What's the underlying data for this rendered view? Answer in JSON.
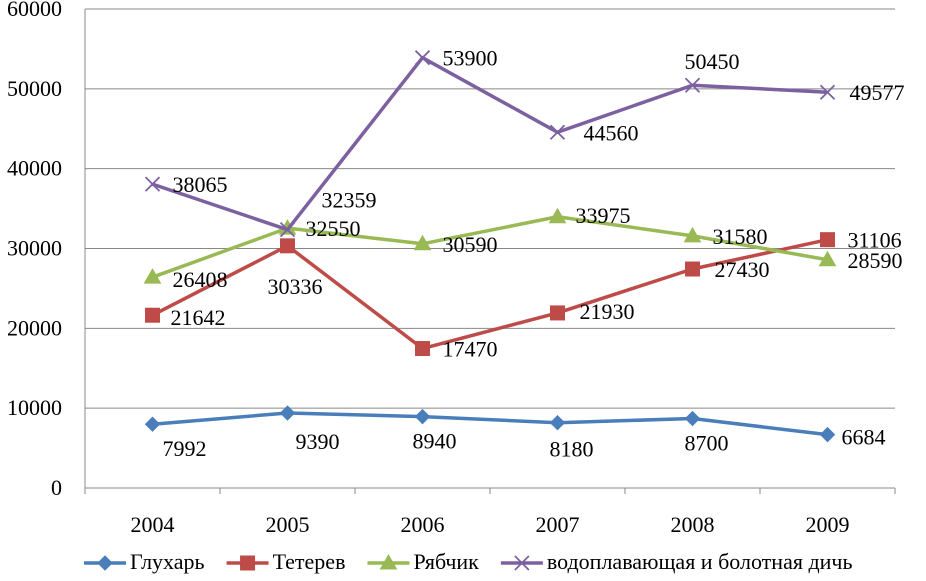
{
  "chart_data": {
    "type": "line",
    "categories": [
      "2004",
      "2005",
      "2006",
      "2007",
      "2008",
      "2009"
    ],
    "ylim": [
      0,
      60000
    ],
    "yticks": [
      "0",
      "10000",
      "20000",
      "30000",
      "40000",
      "50000",
      "60000"
    ],
    "grid": true,
    "legend_position": "bottom",
    "series": [
      {
        "name": "Глухарь",
        "color": "#4a7ebb",
        "marker": "diamond",
        "values": [
          7992,
          9390,
          8940,
          8180,
          8700,
          6684
        ],
        "labels": [
          "7992",
          "9390",
          "8940",
          "8180",
          "8700",
          "6684"
        ]
      },
      {
        "name": "Тетерев",
        "color": "#be4b48",
        "marker": "square",
        "values": [
          21642,
          30336,
          17470,
          21930,
          27430,
          31106
        ],
        "labels": [
          "21642",
          "30336",
          "17470",
          "21930",
          "27430",
          "31106"
        ]
      },
      {
        "name": "Рябчик",
        "color": "#98b954",
        "marker": "triangle",
        "values": [
          26408,
          32550,
          30590,
          33975,
          31580,
          28590
        ],
        "labels": [
          "26408",
          "32550",
          "30590",
          "33975",
          "31580",
          "28590"
        ]
      },
      {
        "name": "водоплавающая и болотная дичь",
        "color": "#7d60a0",
        "marker": "x",
        "values": [
          38065,
          32359,
          53900,
          44560,
          50450,
          49577
        ],
        "labels": [
          "38065",
          "32359",
          "53900",
          "44560",
          "50450",
          "49577"
        ]
      }
    ]
  }
}
